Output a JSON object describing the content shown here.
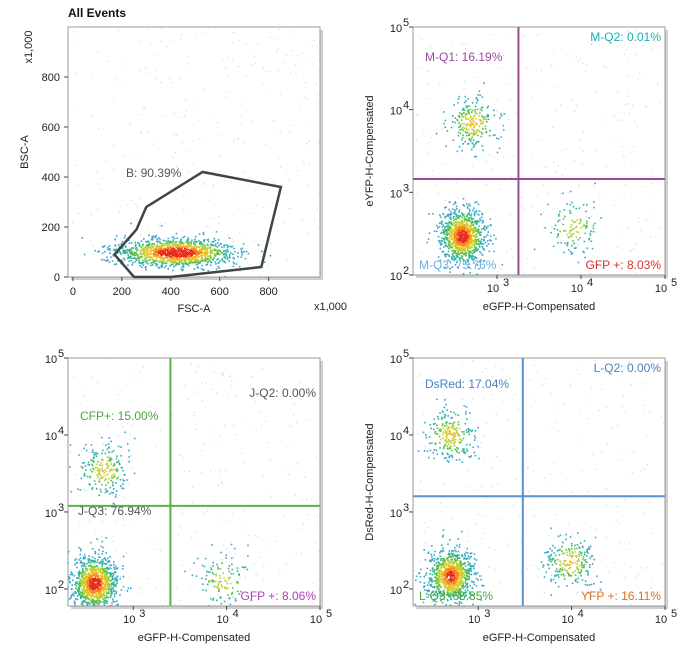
{
  "chart_data": [
    {
      "type": "scatter",
      "title": "All Events",
      "xlabel": "FSC-A",
      "ylabel": "BSC-A",
      "xscale": "linear",
      "yscale": "linear",
      "x_unit_label": "x1,000",
      "y_unit_label": "x1,000",
      "xlim": [
        -20,
        1010
      ],
      "ylim": [
        0,
        1000
      ],
      "xticks": [
        "0",
        "200",
        "400",
        "600",
        "800"
      ],
      "yticks": [
        "0",
        "200",
        "400",
        "600",
        "800"
      ],
      "xtick_values": [
        0,
        200,
        400,
        600,
        800
      ],
      "ytick_values": [
        0,
        200,
        400,
        600,
        800
      ],
      "gates": [
        {
          "label": "B: 90.39%",
          "color": "#444444",
          "polygon": [
            [
              250,
              0
            ],
            [
              170,
              90
            ],
            [
              260,
              190
            ],
            [
              300,
              280
            ],
            [
              530,
              420
            ],
            [
              850,
              360
            ],
            [
              770,
              40
            ],
            [
              400,
              0
            ]
          ]
        }
      ],
      "clusters": [
        {
          "x": 420,
          "y": 100,
          "sx": 120,
          "sy": 28,
          "fraction": 0.9
        }
      ]
    },
    {
      "type": "scatter",
      "xlabel": "eGFP-H-Compensated",
      "ylabel": "eYFP-H-Compensated",
      "xscale": "log",
      "yscale": "log",
      "xlim": [
        100,
        100000
      ],
      "ylim": [
        100,
        100000
      ],
      "xticks": [
        "10",
        "10",
        "10"
      ],
      "xtick_exp": [
        "3",
        "4",
        "5"
      ],
      "xtick_values": [
        1000,
        10000,
        100000
      ],
      "yticks": [
        "10",
        "10",
        "10",
        "10"
      ],
      "ytick_exp": [
        "2",
        "3",
        "4",
        "5"
      ],
      "ytick_values": [
        100,
        1000,
        10000,
        100000
      ],
      "quadrant_divider": {
        "x": 1800,
        "y": 1450,
        "color": "#9b4a9b"
      },
      "gates": [
        {
          "label": "M-Q1: 16.19%",
          "color": "#9b4a9b",
          "corner": "top-left"
        },
        {
          "label": "M-Q2: 0.01%",
          "color": "#1ab0b0",
          "corner": "top-right"
        },
        {
          "label": "M-Q3: 75.76%",
          "color": "#6aaee0",
          "corner": "bottom-left"
        },
        {
          "label": "GFP +: 8.03%",
          "color": "#e03030",
          "corner": "bottom-right"
        }
      ],
      "clusters": [
        {
          "x": 380,
          "y": 300,
          "fraction": 0.7578
        },
        {
          "x": 500,
          "y": 7000,
          "fraction": 0.1619
        },
        {
          "x": 8000,
          "y": 380,
          "fraction": 0.0803
        }
      ]
    },
    {
      "type": "scatter",
      "xlabel": "eGFP-H-Compensated",
      "ylabel": "",
      "xscale": "log",
      "yscale": "log",
      "xlim": [
        200,
        100000
      ],
      "ylim": [
        60,
        100000
      ],
      "xticks": [
        "10",
        "10",
        "10"
      ],
      "xtick_exp": [
        "3",
        "4",
        "5"
      ],
      "xtick_values": [
        1000,
        10000,
        100000
      ],
      "yticks": [
        "10",
        "10",
        "10",
        "10"
      ],
      "ytick_exp": [
        "2",
        "3",
        "4",
        "5"
      ],
      "ytick_values": [
        100,
        1000,
        10000,
        100000
      ],
      "quadrant_divider": {
        "x": 2500,
        "y": 1200,
        "color": "#5ab24a"
      },
      "gates": [
        {
          "label": "CFP+: 15.00%",
          "color": "#4aa83a",
          "corner": "top-left"
        },
        {
          "label": "J-Q2: 0.00%",
          "color": "#555555",
          "corner": "top-right"
        },
        {
          "label": "J-Q3: 76.94%",
          "color": "#555555",
          "corner": "bottom-left"
        },
        {
          "label": "GFP +: 8.06%",
          "color": "#b040b0",
          "corner": "bottom-right"
        }
      ],
      "clusters": [
        {
          "x": 380,
          "y": 120,
          "fraction": 0.7694
        },
        {
          "x": 480,
          "y": 3500,
          "fraction": 0.15
        },
        {
          "x": 9000,
          "y": 130,
          "fraction": 0.0806
        }
      ]
    },
    {
      "type": "scatter",
      "xlabel": "eGFP-H-Compensated",
      "ylabel": "DsRed-H-Compensated",
      "xscale": "log",
      "yscale": "log",
      "xlim": [
        200,
        100000
      ],
      "ylim": [
        60,
        100000
      ],
      "xticks": [
        "10",
        "10",
        "10"
      ],
      "xtick_exp": [
        "3",
        "4",
        "5"
      ],
      "xtick_values": [
        1000,
        10000,
        100000
      ],
      "yticks": [
        "10",
        "10",
        "10",
        "10"
      ],
      "ytick_exp": [
        "2",
        "3",
        "4",
        "5"
      ],
      "ytick_values": [
        100,
        1000,
        10000,
        100000
      ],
      "quadrant_divider": {
        "x": 3000,
        "y": 1600,
        "color": "#5a8fd0"
      },
      "gates": [
        {
          "label": "DsRed: 17.04%",
          "color": "#4a7fc0",
          "corner": "top-left"
        },
        {
          "label": "L-Q2: 0.00%",
          "color": "#4a7fc0",
          "corner": "top-right"
        },
        {
          "label": "L-Q3: 66.85%",
          "color": "#4aa83a",
          "corner": "bottom-left"
        },
        {
          "label": "YFP +: 16.11%",
          "color": "#e07020",
          "corner": "bottom-right"
        }
      ],
      "clusters": [
        {
          "x": 500,
          "y": 150,
          "fraction": 0.6685
        },
        {
          "x": 500,
          "y": 10000,
          "fraction": 0.1704
        },
        {
          "x": 9500,
          "y": 230,
          "fraction": 0.1611
        }
      ]
    }
  ]
}
